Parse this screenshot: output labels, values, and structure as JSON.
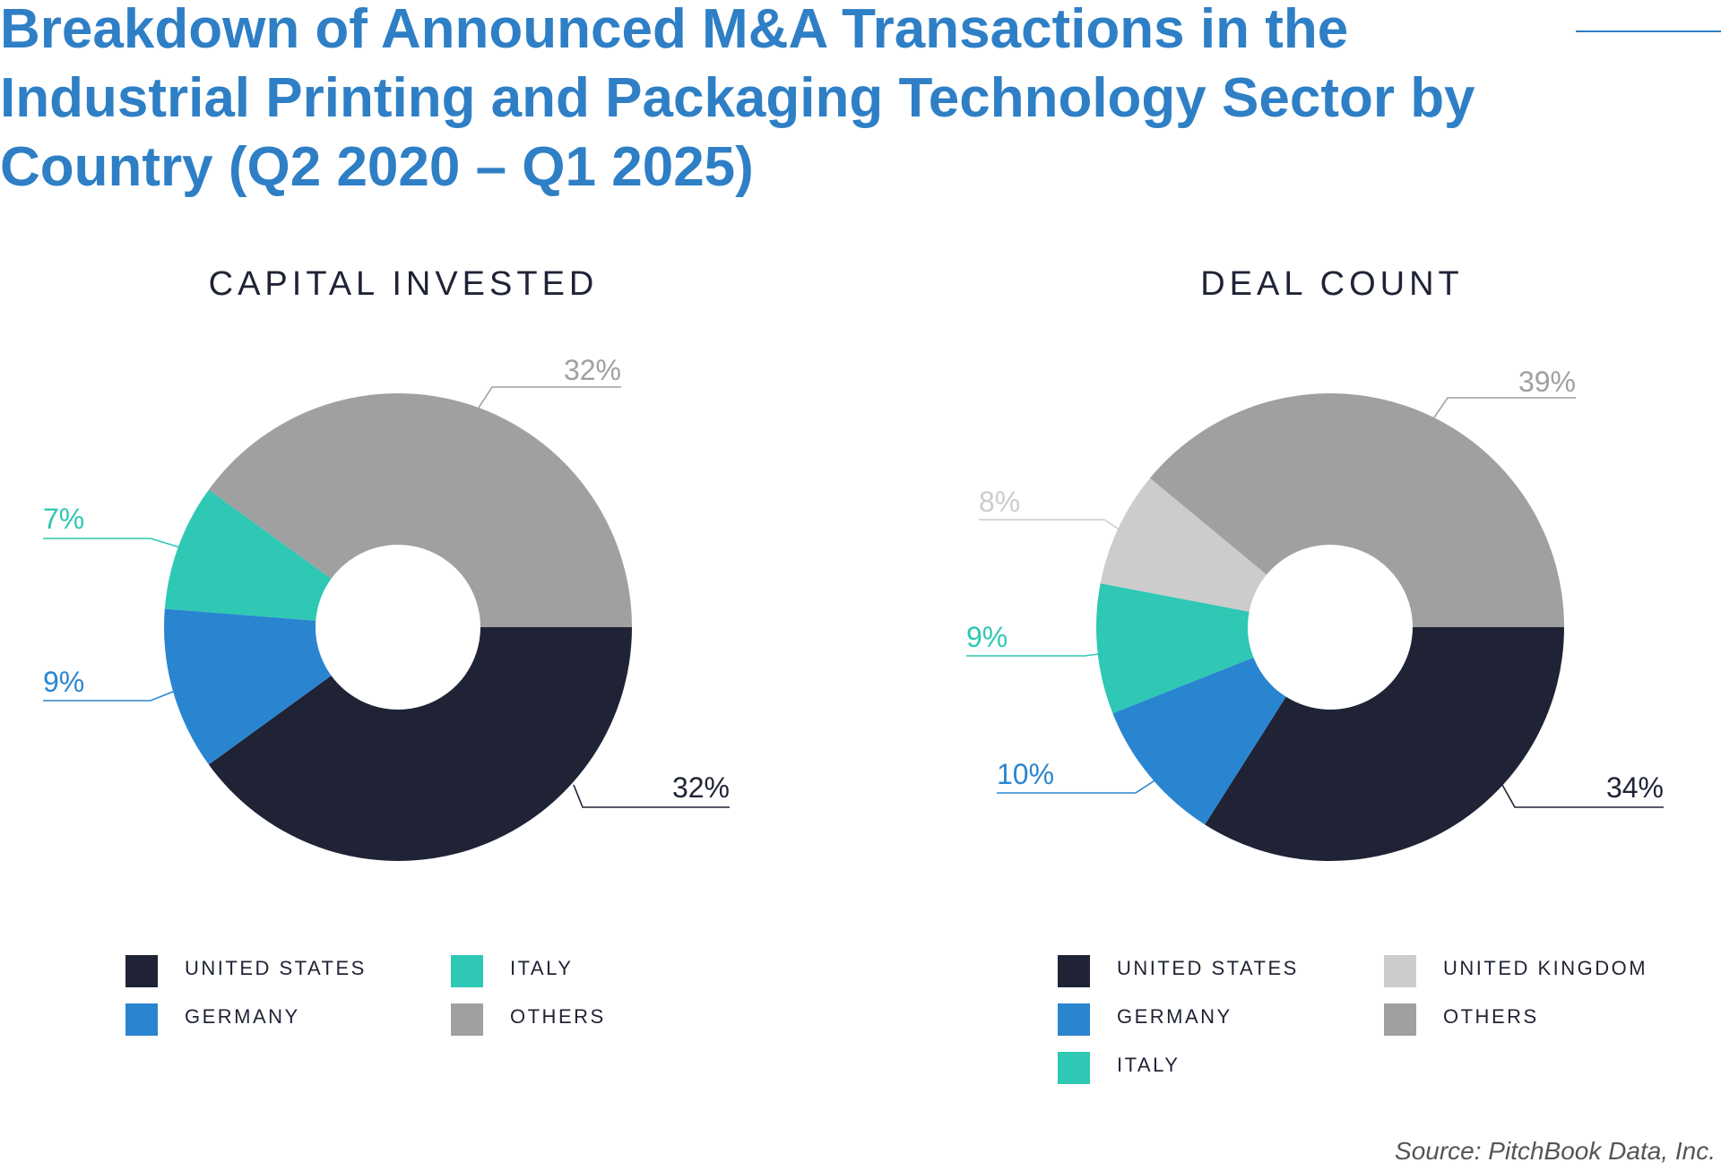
{
  "title": "Breakdown of Announced M&A Transactions in the Industrial Printing and Packaging Technology Sector by Country (Q2 2020 – Q1 2025)",
  "source": "Source: PitchBook Data, Inc.",
  "colors": {
    "united_states": "#1f2335",
    "germany": "#2a85d0",
    "italy": "#2ec8b4",
    "united_kingdom": "#cccccc",
    "others": "#a0a0a0",
    "title": "#2e7fc5"
  },
  "chart_data": [
    {
      "type": "pie",
      "variant": "donut",
      "title": "CAPITAL INVESTED",
      "categories": [
        "United States",
        "Germany",
        "Italy",
        "Others"
      ],
      "values": [
        32,
        9,
        7,
        32
      ],
      "labels": [
        "32%",
        "9%",
        "7%",
        "32%"
      ],
      "legend": [
        "UNITED STATES",
        "GERMANY",
        "ITALY",
        "OTHERS"
      ]
    },
    {
      "type": "pie",
      "variant": "donut",
      "title": "DEAL COUNT",
      "categories": [
        "United States",
        "Germany",
        "Italy",
        "United Kingdom",
        "Others"
      ],
      "values": [
        34,
        10,
        9,
        8,
        39
      ],
      "labels": [
        "34%",
        "10%",
        "9%",
        "8%",
        "39%"
      ],
      "legend": [
        "UNITED STATES",
        "GERMANY",
        "ITALY",
        "UNITED KINGDOM",
        "OTHERS"
      ]
    }
  ]
}
